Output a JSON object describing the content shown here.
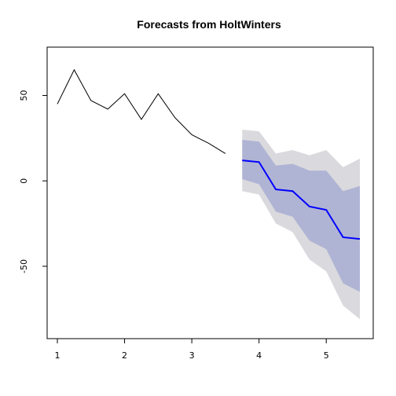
{
  "chart_data": {
    "type": "line",
    "title": "Forecasts from HoltWinters",
    "xlim": [
      1,
      5.5
    ],
    "ylim": [
      -85,
      70
    ],
    "xticks": [
      1,
      2,
      3,
      4,
      5
    ],
    "yticks": [
      50,
      0,
      -50
    ],
    "historical": {
      "x": [
        1,
        1.25,
        1.5,
        1.75,
        2,
        2.25,
        2.5,
        2.75,
        3,
        3.25,
        3.5
      ],
      "y": [
        45,
        65,
        47,
        42,
        51,
        36,
        51,
        37,
        27,
        22,
        16
      ],
      "color": "#000000"
    },
    "forecast": {
      "x": [
        3.75,
        4,
        4.25,
        4.5,
        4.75,
        5,
        5.25,
        5.5
      ],
      "mean": [
        12,
        11,
        -5,
        -6,
        -15,
        -17,
        -33,
        -34
      ],
      "lo80": [
        1,
        -2,
        -18,
        -21,
        -35,
        -40,
        -60,
        -65
      ],
      "hi80": [
        24,
        23,
        9,
        10,
        6,
        6,
        -6,
        -3
      ],
      "lo95": [
        -6,
        -8,
        -25,
        -30,
        -46,
        -53,
        -73,
        -81
      ],
      "hi95": [
        30,
        29,
        16,
        18,
        15,
        18,
        8,
        13
      ],
      "color": "#0000ff",
      "band80_color": "#b0b4d4",
      "band95_color": "#dadade"
    }
  }
}
